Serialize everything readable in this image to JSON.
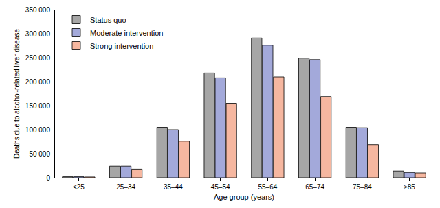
{
  "chart_data": {
    "type": "bar",
    "x_label": "Age group (years)",
    "y_label": "Deaths due to alcohol-related liver disease",
    "categories": [
      "<25",
      "25–34",
      "35–44",
      "45–54",
      "55–64",
      "65–74",
      "75–84",
      "≥85"
    ],
    "series": [
      {
        "name": "Status quo",
        "color": "#a6a6a6",
        "values": [
          2000,
          24000,
          105000,
          218000,
          291000,
          249000,
          105000,
          14000
        ]
      },
      {
        "name": "Moderate intervention",
        "color": "#a3a9da",
        "values": [
          2000,
          24000,
          100000,
          208000,
          276000,
          246000,
          104000,
          11000
        ]
      },
      {
        "name": "Strong intervention",
        "color": "#f6b7a0",
        "values": [
          1500,
          18000,
          76000,
          155000,
          210000,
          169000,
          69000,
          10000
        ]
      }
    ],
    "ylim": [
      0,
      350000
    ],
    "yticks": [
      0,
      {
        "value": 50000,
        "label": "50 000"
      },
      {
        "value": 100000,
        "label": "100 000"
      },
      {
        "value": 150000,
        "label": "150 000"
      },
      {
        "value": 200000,
        "label": "200 000"
      },
      {
        "value": 250000,
        "label": "250 000"
      },
      {
        "value": 300000,
        "label": "300 000"
      },
      {
        "value": 350000,
        "label": "350 000"
      }
    ],
    "grid": false,
    "legend": "top-left"
  }
}
